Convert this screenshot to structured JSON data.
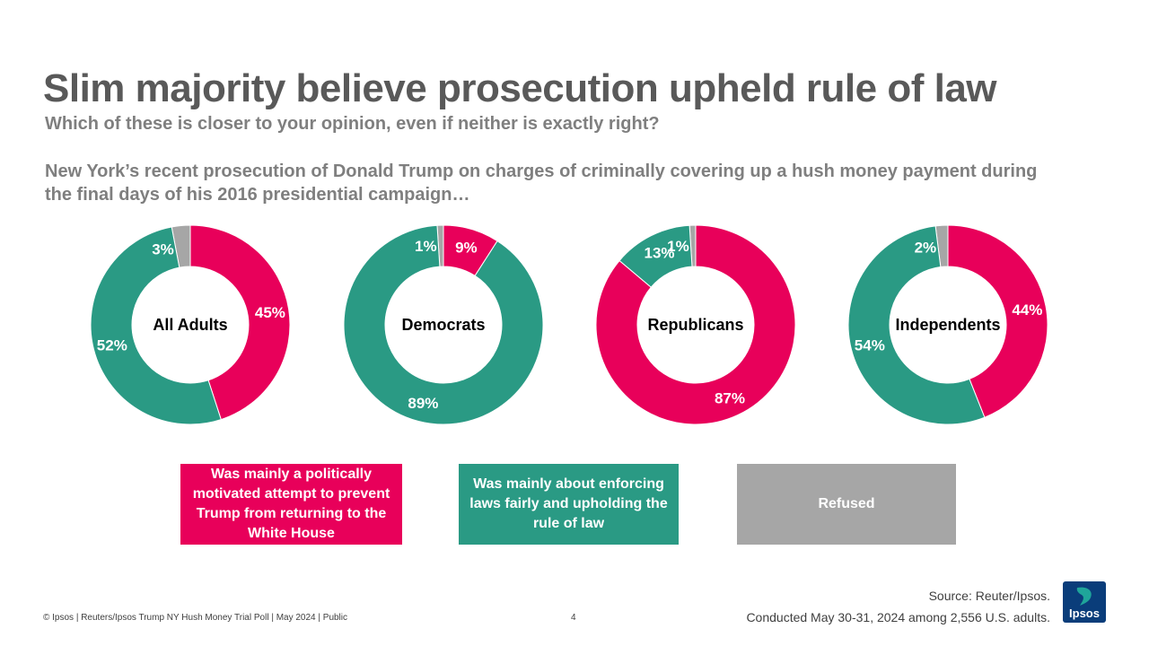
{
  "title": "Slim majority believe prosecution upheld rule of law",
  "subtitle": "Which of these is closer to your opinion, even if neither is exactly right?",
  "question": "New York’s recent prosecution of Donald Trump on charges of criminally covering up a hush money payment during the final days of his 2016 presidential campaign…",
  "colors": {
    "political": "#e8005a",
    "enforcing": "#2a9a84",
    "refused": "#a6a6a6"
  },
  "chart_data": [
    {
      "type": "pie",
      "title": "All Adults",
      "categories": [
        "Was mainly a politically motivated attempt to prevent Trump from returning to the White House",
        "Was mainly about enforcing laws fairly and upholding the rule of law",
        "Refused"
      ],
      "values": [
        45,
        52,
        3
      ],
      "labels": [
        "45%",
        "52%",
        "3%"
      ]
    },
    {
      "type": "pie",
      "title": "Democrats",
      "categories": [
        "Was mainly a politically motivated attempt to prevent Trump from returning to the White House",
        "Was mainly about enforcing laws fairly and upholding the rule of law",
        "Refused"
      ],
      "values": [
        9,
        89,
        1
      ],
      "labels": [
        "9%",
        "89%",
        "1%"
      ]
    },
    {
      "type": "pie",
      "title": "Republicans",
      "categories": [
        "Was mainly a politically motivated attempt to prevent Trump from returning to the White House",
        "Was mainly about enforcing laws fairly and upholding the rule of law",
        "Refused"
      ],
      "values": [
        87,
        13,
        1
      ],
      "labels": [
        "87%",
        "13%",
        "1%"
      ]
    },
    {
      "type": "pie",
      "title": "Independents",
      "categories": [
        "Was mainly a politically motivated attempt to prevent Trump from returning to the White House",
        "Was mainly about enforcing laws fairly and upholding the rule of law",
        "Refused"
      ],
      "values": [
        44,
        54,
        2
      ],
      "labels": [
        "44%",
        "54%",
        "2%"
      ]
    }
  ],
  "legend": [
    {
      "label": "Was mainly a politically motivated attempt to prevent Trump from returning to the White House",
      "color": "#e8005a"
    },
    {
      "label": "Was mainly about enforcing laws fairly and upholding the rule of law",
      "color": "#2a9a84"
    },
    {
      "label": "Refused",
      "color": "#a6a6a6"
    }
  ],
  "footer": {
    "copyright": "© Ipsos | Reuters/Ipsos Trump NY Hush Money Trial Poll | May 2024 | Public",
    "page": "4",
    "source": "Source: Reuter/Ipsos.",
    "conducted": "Conducted May 30-31, 2024 among 2,556 U.S. adults.",
    "logo_text": "Ipsos"
  }
}
